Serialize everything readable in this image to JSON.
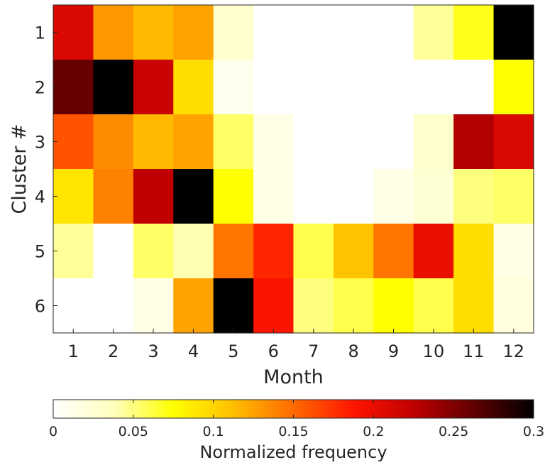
{
  "chart_data": {
    "type": "heatmap",
    "title": "",
    "xlabel": "Month",
    "ylabel": "Cluster #",
    "x_categories": [
      "1",
      "2",
      "3",
      "4",
      "5",
      "6",
      "7",
      "8",
      "9",
      "10",
      "11",
      "12"
    ],
    "y_categories": [
      "1",
      "2",
      "3",
      "4",
      "5",
      "6"
    ],
    "values": [
      [
        0.21,
        0.13,
        0.115,
        0.125,
        0.03,
        0.0,
        0.0,
        0.0,
        0.0,
        0.045,
        0.07,
        0.3
      ],
      [
        0.26,
        0.3,
        0.22,
        0.095,
        0.01,
        0.0,
        0.0,
        0.0,
        0.0,
        0.0,
        0.0,
        0.075
      ],
      [
        0.16,
        0.135,
        0.115,
        0.125,
        0.055,
        0.015,
        0.0,
        0.0,
        0.0,
        0.03,
        0.23,
        0.21
      ],
      [
        0.09,
        0.14,
        0.225,
        0.3,
        0.075,
        0.015,
        0.0,
        0.0,
        0.015,
        0.025,
        0.05,
        0.055
      ],
      [
        0.045,
        0.0,
        0.055,
        0.04,
        0.145,
        0.18,
        0.06,
        0.11,
        0.145,
        0.2,
        0.095,
        0.015
      ],
      [
        0.0,
        0.0,
        0.015,
        0.125,
        0.3,
        0.19,
        0.05,
        0.06,
        0.075,
        0.06,
        0.095,
        0.02
      ]
    ],
    "colormap": "hot (reversed)",
    "clim": [
      0,
      0.3
    ],
    "colorbar": {
      "label": "Normalized frequency",
      "placement": "bottom",
      "ticks": [
        "0",
        "0.05",
        "0.1",
        "0.15",
        "0.2",
        "0.25",
        "0.3"
      ]
    },
    "grid": false
  }
}
